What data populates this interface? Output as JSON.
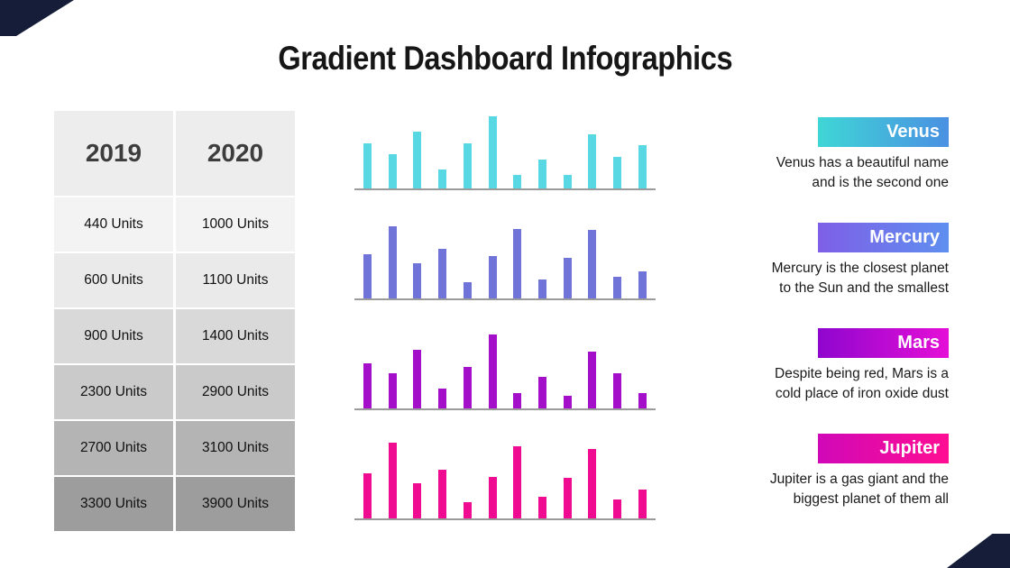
{
  "title": "Gradient Dashboard Infographics",
  "decor": {
    "corner_color": "#151d38"
  },
  "table": {
    "headers": [
      "2019",
      "2020"
    ],
    "rows": [
      [
        "440 Units",
        "1000 Units"
      ],
      [
        "600 Units",
        "1100 Units"
      ],
      [
        "900 Units",
        "1400 Units"
      ],
      [
        "2300 Units",
        "2900 Units"
      ],
      [
        "2700 Units",
        "3100 Units"
      ],
      [
        "3300 Units",
        "3900 Units"
      ]
    ]
  },
  "chart_data": [
    {
      "type": "bar",
      "name": "Venus",
      "color": "#58d8e2",
      "values": [
        60,
        45,
        75,
        25,
        60,
        95,
        18,
        38,
        18,
        72,
        42,
        57
      ],
      "ylim": [
        0,
        100
      ],
      "axis_labels": "none"
    },
    {
      "type": "bar",
      "name": "Mercury",
      "color": "#7073d7",
      "values": [
        58,
        95,
        47,
        66,
        21,
        56,
        92,
        25,
        53,
        90,
        28,
        36
      ],
      "ylim": [
        0,
        100
      ],
      "axis_labels": "none"
    },
    {
      "type": "bar",
      "name": "Mars",
      "color": "#a410ca",
      "values": [
        60,
        47,
        77,
        26,
        55,
        98,
        20,
        42,
        17,
        75,
        46,
        20
      ],
      "ylim": [
        0,
        100
      ],
      "axis_labels": "none"
    },
    {
      "type": "bar",
      "name": "Jupiter",
      "color": "#ef0c90",
      "values": [
        60,
        100,
        47,
        64,
        22,
        55,
        95,
        28,
        53,
        92,
        25,
        38
      ],
      "ylim": [
        0,
        100
      ],
      "axis_labels": "none"
    },
    {
      "type": "table",
      "columns": [
        "2019",
        "2020"
      ],
      "rows": [
        [
          440,
          1000
        ],
        [
          600,
          1100
        ],
        [
          900,
          1400
        ],
        [
          2300,
          2900
        ],
        [
          2700,
          3100
        ],
        [
          3300,
          3900
        ]
      ]
    }
  ],
  "planets": [
    {
      "name": "Venus",
      "gradient": [
        "#3fd6d6",
        "#4a90e2"
      ],
      "lines": [
        "Venus has a beautiful name",
        "and is the second one"
      ]
    },
    {
      "name": "Mercury",
      "gradient": [
        "#7e5fe6",
        "#5f8ff0"
      ],
      "lines": [
        "Mercury is the closest planet",
        "to the Sun and the smallest"
      ]
    },
    {
      "name": "Mars",
      "gradient": [
        "#8f06ce",
        "#e50fd6"
      ],
      "lines": [
        "Despite being red, Mars is a",
        "cold place of iron oxide dust"
      ]
    },
    {
      "name": "Jupiter",
      "gradient": [
        "#d008b8",
        "#ff0e92"
      ],
      "lines": [
        "Jupiter is a gas giant and the",
        "biggest planet of them all"
      ]
    }
  ]
}
